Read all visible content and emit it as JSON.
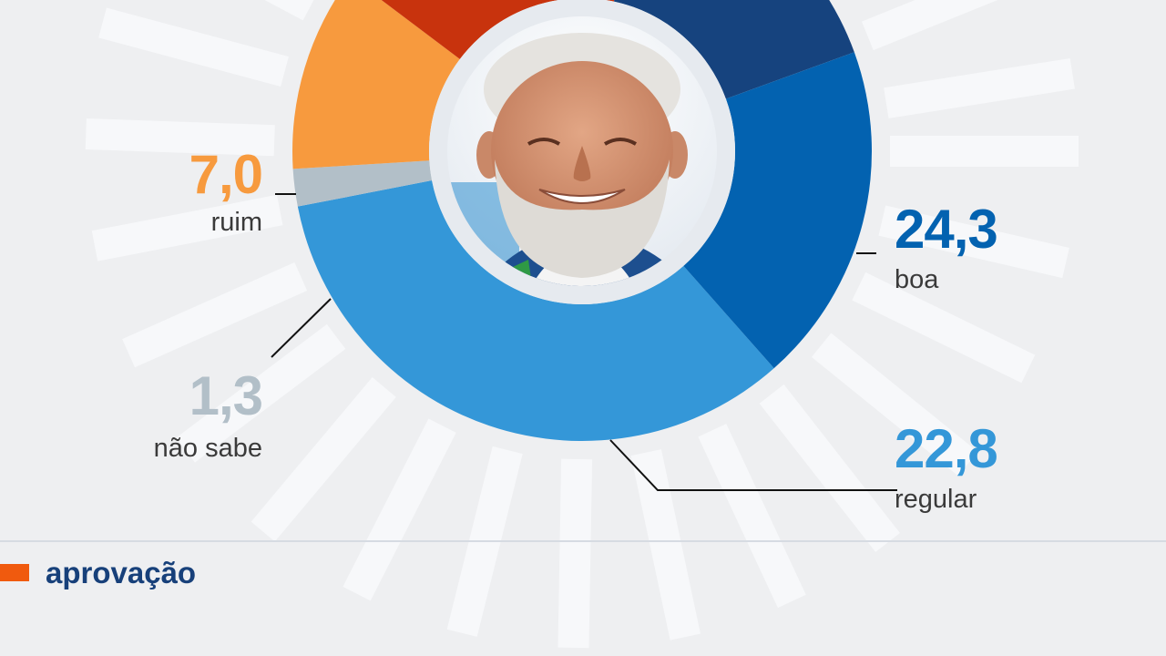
{
  "chart_data": {
    "type": "donut",
    "slices": [
      {
        "label": "regular",
        "value": 22.8,
        "display": "22,8",
        "color": "#3497d8"
      },
      {
        "label": "não sabe",
        "value": 1.3,
        "display": "1,3",
        "color": "#b2bfc8"
      },
      {
        "label": "ruim",
        "value": 7.0,
        "display": "7,0",
        "color": "#f79a3e"
      },
      {
        "label": "",
        "value": null,
        "display": "",
        "color": "#c8330d"
      },
      {
        "label": "",
        "value": null,
        "display": "",
        "color": "#16437e"
      },
      {
        "label": "boa",
        "value": 24.3,
        "display": "24,3",
        "color": "#0362b0"
      }
    ]
  },
  "legend": {
    "label": "aprovação",
    "color": "#f05a0e"
  },
  "portrait": {
    "description": "portrait-photo"
  }
}
